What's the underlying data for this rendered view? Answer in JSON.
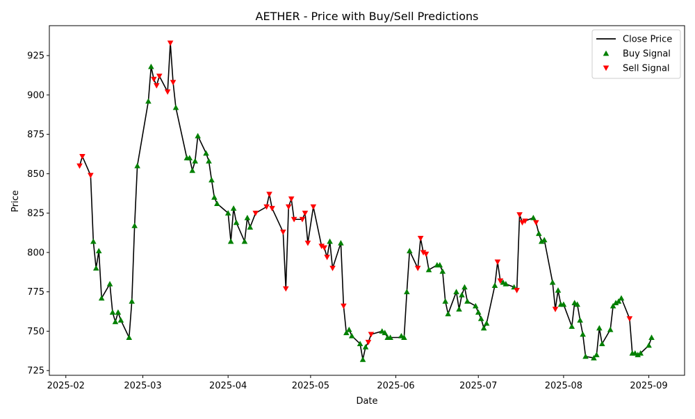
{
  "chart_data": {
    "type": "line",
    "title": "AETHER - Price with Buy/Sell Predictions",
    "xlabel": "Date",
    "ylabel": "Price",
    "xlim": [
      "2025-01-26",
      "2025-09-14"
    ],
    "ylim": [
      722,
      944
    ],
    "x_ticks": [
      "2025-02",
      "2025-03",
      "2025-04",
      "2025-05",
      "2025-06",
      "2025-07",
      "2025-08",
      "2025-09"
    ],
    "y_ticks": [
      725,
      750,
      775,
      800,
      825,
      850,
      875,
      900,
      925
    ],
    "grid": false,
    "legend_position": "top-right",
    "colors": {
      "close": "#000000",
      "buy": "#008000",
      "sell": "#ff0000"
    },
    "series": [
      {
        "name": "Close Price",
        "kind": "line",
        "points": [
          [
            "2025-02-06",
            855
          ],
          [
            "2025-02-07",
            861
          ],
          [
            "2025-02-10",
            849
          ],
          [
            "2025-02-11",
            807
          ],
          [
            "2025-02-12",
            790
          ],
          [
            "2025-02-13",
            801
          ],
          [
            "2025-02-14",
            771
          ],
          [
            "2025-02-17",
            780
          ],
          [
            "2025-02-18",
            762
          ],
          [
            "2025-02-19",
            756
          ],
          [
            "2025-02-20",
            762
          ],
          [
            "2025-02-21",
            757
          ],
          [
            "2025-02-24",
            746
          ],
          [
            "2025-02-25",
            769
          ],
          [
            "2025-02-26",
            817
          ],
          [
            "2025-02-27",
            855
          ],
          [
            "2025-03-03",
            896
          ],
          [
            "2025-03-04",
            918
          ],
          [
            "2025-03-05",
            910
          ],
          [
            "2025-03-06",
            906
          ],
          [
            "2025-03-07",
            912
          ],
          [
            "2025-03-10",
            902
          ],
          [
            "2025-03-11",
            933
          ],
          [
            "2025-03-12",
            908
          ],
          [
            "2025-03-13",
            892
          ],
          [
            "2025-03-17",
            860
          ],
          [
            "2025-03-18",
            860
          ],
          [
            "2025-03-19",
            852
          ],
          [
            "2025-03-20",
            858
          ],
          [
            "2025-03-21",
            874
          ],
          [
            "2025-03-24",
            863
          ],
          [
            "2025-03-25",
            858
          ],
          [
            "2025-03-26",
            846
          ],
          [
            "2025-03-27",
            835
          ],
          [
            "2025-03-28",
            831
          ],
          [
            "2025-04-01",
            825
          ],
          [
            "2025-04-02",
            807
          ],
          [
            "2025-04-03",
            828
          ],
          [
            "2025-04-04",
            819
          ],
          [
            "2025-04-07",
            807
          ],
          [
            "2025-04-08",
            822
          ],
          [
            "2025-04-09",
            816
          ],
          [
            "2025-04-11",
            825
          ],
          [
            "2025-04-15",
            829
          ],
          [
            "2025-04-16",
            837
          ],
          [
            "2025-04-17",
            828
          ],
          [
            "2025-04-21",
            813
          ],
          [
            "2025-04-22",
            777
          ],
          [
            "2025-04-23",
            829
          ],
          [
            "2025-04-24",
            834
          ],
          [
            "2025-04-25",
            821
          ],
          [
            "2025-04-28",
            821
          ],
          [
            "2025-04-29",
            825
          ],
          [
            "2025-04-30",
            806
          ],
          [
            "2025-05-02",
            829
          ],
          [
            "2025-05-05",
            804
          ],
          [
            "2025-05-06",
            803
          ],
          [
            "2025-05-07",
            797
          ],
          [
            "2025-05-08",
            807
          ],
          [
            "2025-05-09",
            790
          ],
          [
            "2025-05-12",
            806
          ],
          [
            "2025-05-13",
            766
          ],
          [
            "2025-05-14",
            749
          ],
          [
            "2025-05-15",
            751
          ],
          [
            "2025-05-16",
            747
          ],
          [
            "2025-05-19",
            742
          ],
          [
            "2025-05-20",
            732
          ],
          [
            "2025-05-21",
            740
          ],
          [
            "2025-05-22",
            743
          ],
          [
            "2025-05-23",
            748
          ],
          [
            "2025-05-27",
            750
          ],
          [
            "2025-05-28",
            749
          ],
          [
            "2025-05-29",
            746
          ],
          [
            "2025-05-30",
            746
          ],
          [
            "2025-06-02",
            746
          ],
          [
            "2025-06-03",
            747
          ],
          [
            "2025-06-04",
            746
          ],
          [
            "2025-06-05",
            775
          ],
          [
            "2025-06-06",
            801
          ],
          [
            "2025-06-09",
            790
          ],
          [
            "2025-06-10",
            809
          ],
          [
            "2025-06-11",
            800
          ],
          [
            "2025-06-12",
            799
          ],
          [
            "2025-06-13",
            789
          ],
          [
            "2025-06-16",
            792
          ],
          [
            "2025-06-17",
            792
          ],
          [
            "2025-06-18",
            788
          ],
          [
            "2025-06-19",
            769
          ],
          [
            "2025-06-20",
            761
          ],
          [
            "2025-06-23",
            775
          ],
          [
            "2025-06-24",
            764
          ],
          [
            "2025-06-25",
            773
          ],
          [
            "2025-06-26",
            778
          ],
          [
            "2025-06-27",
            769
          ],
          [
            "2025-06-30",
            766
          ],
          [
            "2025-07-01",
            762
          ],
          [
            "2025-07-02",
            758
          ],
          [
            "2025-07-03",
            752
          ],
          [
            "2025-07-04",
            755
          ],
          [
            "2025-07-07",
            779
          ],
          [
            "2025-07-08",
            794
          ],
          [
            "2025-07-09",
            782
          ],
          [
            "2025-07-10",
            781
          ],
          [
            "2025-07-11",
            780
          ],
          [
            "2025-07-14",
            778
          ],
          [
            "2025-07-15",
            776
          ],
          [
            "2025-07-16",
            824
          ],
          [
            "2025-07-17",
            819
          ],
          [
            "2025-07-18",
            820
          ],
          [
            "2025-07-21",
            822
          ],
          [
            "2025-07-22",
            819
          ],
          [
            "2025-07-23",
            812
          ],
          [
            "2025-07-24",
            807
          ],
          [
            "2025-07-25",
            808
          ],
          [
            "2025-07-28",
            781
          ],
          [
            "2025-07-29",
            764
          ],
          [
            "2025-07-30",
            776
          ],
          [
            "2025-07-31",
            767
          ],
          [
            "2025-08-01",
            767
          ],
          [
            "2025-08-04",
            753
          ],
          [
            "2025-08-05",
            768
          ],
          [
            "2025-08-06",
            767
          ],
          [
            "2025-08-07",
            757
          ],
          [
            "2025-08-08",
            748
          ],
          [
            "2025-08-09",
            734
          ],
          [
            "2025-08-12",
            733
          ],
          [
            "2025-08-13",
            735
          ],
          [
            "2025-08-14",
            752
          ],
          [
            "2025-08-15",
            742
          ],
          [
            "2025-08-18",
            751
          ],
          [
            "2025-08-19",
            766
          ],
          [
            "2025-08-20",
            768
          ],
          [
            "2025-08-21",
            769
          ],
          [
            "2025-08-22",
            771
          ],
          [
            "2025-08-25",
            758
          ],
          [
            "2025-08-26",
            736
          ],
          [
            "2025-08-27",
            736
          ],
          [
            "2025-08-28",
            735
          ],
          [
            "2025-08-29",
            736
          ],
          [
            "2025-09-01",
            741
          ],
          [
            "2025-09-02",
            746
          ]
        ]
      },
      {
        "name": "Buy Signal",
        "kind": "scatter",
        "marker": "triangle-up",
        "points": [
          [
            "2025-02-11",
            807
          ],
          [
            "2025-02-12",
            790
          ],
          [
            "2025-02-13",
            801
          ],
          [
            "2025-02-14",
            771
          ],
          [
            "2025-02-17",
            780
          ],
          [
            "2025-02-18",
            762
          ],
          [
            "2025-02-19",
            756
          ],
          [
            "2025-02-20",
            762
          ],
          [
            "2025-02-21",
            757
          ],
          [
            "2025-02-24",
            746
          ],
          [
            "2025-02-25",
            769
          ],
          [
            "2025-02-26",
            817
          ],
          [
            "2025-02-27",
            855
          ],
          [
            "2025-03-03",
            896
          ],
          [
            "2025-03-04",
            918
          ],
          [
            "2025-03-13",
            892
          ],
          [
            "2025-03-17",
            860
          ],
          [
            "2025-03-18",
            860
          ],
          [
            "2025-03-19",
            852
          ],
          [
            "2025-03-20",
            858
          ],
          [
            "2025-03-21",
            874
          ],
          [
            "2025-03-24",
            863
          ],
          [
            "2025-03-25",
            858
          ],
          [
            "2025-03-26",
            846
          ],
          [
            "2025-03-27",
            835
          ],
          [
            "2025-03-28",
            831
          ],
          [
            "2025-04-01",
            825
          ],
          [
            "2025-04-02",
            807
          ],
          [
            "2025-04-03",
            828
          ],
          [
            "2025-04-04",
            819
          ],
          [
            "2025-04-07",
            807
          ],
          [
            "2025-04-08",
            822
          ],
          [
            "2025-04-09",
            816
          ],
          [
            "2025-05-08",
            807
          ],
          [
            "2025-05-12",
            806
          ],
          [
            "2025-05-14",
            749
          ],
          [
            "2025-05-15",
            751
          ],
          [
            "2025-05-16",
            747
          ],
          [
            "2025-05-19",
            742
          ],
          [
            "2025-05-20",
            732
          ],
          [
            "2025-05-21",
            740
          ],
          [
            "2025-05-27",
            750
          ],
          [
            "2025-05-28",
            749
          ],
          [
            "2025-05-29",
            746
          ],
          [
            "2025-05-30",
            746
          ],
          [
            "2025-06-03",
            747
          ],
          [
            "2025-06-04",
            746
          ],
          [
            "2025-06-05",
            775
          ],
          [
            "2025-06-06",
            801
          ],
          [
            "2025-06-13",
            789
          ],
          [
            "2025-06-16",
            792
          ],
          [
            "2025-06-17",
            792
          ],
          [
            "2025-06-18",
            788
          ],
          [
            "2025-06-19",
            769
          ],
          [
            "2025-06-20",
            761
          ],
          [
            "2025-06-23",
            775
          ],
          [
            "2025-06-24",
            764
          ],
          [
            "2025-06-25",
            773
          ],
          [
            "2025-06-26",
            778
          ],
          [
            "2025-06-27",
            769
          ],
          [
            "2025-06-30",
            766
          ],
          [
            "2025-07-01",
            762
          ],
          [
            "2025-07-02",
            758
          ],
          [
            "2025-07-03",
            752
          ],
          [
            "2025-07-04",
            755
          ],
          [
            "2025-07-07",
            779
          ],
          [
            "2025-07-10",
            781
          ],
          [
            "2025-07-11",
            780
          ],
          [
            "2025-07-14",
            778
          ],
          [
            "2025-07-21",
            822
          ],
          [
            "2025-07-23",
            812
          ],
          [
            "2025-07-24",
            807
          ],
          [
            "2025-07-25",
            808
          ],
          [
            "2025-07-28",
            781
          ],
          [
            "2025-07-30",
            776
          ],
          [
            "2025-07-31",
            767
          ],
          [
            "2025-08-01",
            767
          ],
          [
            "2025-08-04",
            753
          ],
          [
            "2025-08-05",
            768
          ],
          [
            "2025-08-06",
            767
          ],
          [
            "2025-08-07",
            757
          ],
          [
            "2025-08-08",
            748
          ],
          [
            "2025-08-09",
            734
          ],
          [
            "2025-08-12",
            733
          ],
          [
            "2025-08-13",
            735
          ],
          [
            "2025-08-14",
            752
          ],
          [
            "2025-08-15",
            742
          ],
          [
            "2025-08-18",
            751
          ],
          [
            "2025-08-19",
            766
          ],
          [
            "2025-08-20",
            768
          ],
          [
            "2025-08-21",
            769
          ],
          [
            "2025-08-22",
            771
          ],
          [
            "2025-08-26",
            736
          ],
          [
            "2025-08-27",
            736
          ],
          [
            "2025-08-28",
            735
          ],
          [
            "2025-08-29",
            736
          ],
          [
            "2025-09-01",
            741
          ],
          [
            "2025-09-02",
            746
          ]
        ]
      },
      {
        "name": "Sell Signal",
        "kind": "scatter",
        "marker": "triangle-down",
        "points": [
          [
            "2025-02-06",
            855
          ],
          [
            "2025-02-07",
            861
          ],
          [
            "2025-02-10",
            849
          ],
          [
            "2025-03-05",
            910
          ],
          [
            "2025-03-06",
            906
          ],
          [
            "2025-03-07",
            912
          ],
          [
            "2025-03-10",
            902
          ],
          [
            "2025-03-11",
            933
          ],
          [
            "2025-03-12",
            908
          ],
          [
            "2025-04-11",
            825
          ],
          [
            "2025-04-15",
            829
          ],
          [
            "2025-04-16",
            837
          ],
          [
            "2025-04-17",
            828
          ],
          [
            "2025-04-21",
            813
          ],
          [
            "2025-04-22",
            777
          ],
          [
            "2025-04-23",
            829
          ],
          [
            "2025-04-24",
            834
          ],
          [
            "2025-04-25",
            821
          ],
          [
            "2025-04-28",
            821
          ],
          [
            "2025-04-29",
            825
          ],
          [
            "2025-04-30",
            806
          ],
          [
            "2025-05-02",
            829
          ],
          [
            "2025-05-05",
            804
          ],
          [
            "2025-05-06",
            803
          ],
          [
            "2025-05-07",
            797
          ],
          [
            "2025-05-09",
            790
          ],
          [
            "2025-05-13",
            766
          ],
          [
            "2025-05-22",
            743
          ],
          [
            "2025-05-23",
            748
          ],
          [
            "2025-06-09",
            790
          ],
          [
            "2025-06-10",
            809
          ],
          [
            "2025-06-11",
            800
          ],
          [
            "2025-06-12",
            799
          ],
          [
            "2025-07-08",
            794
          ],
          [
            "2025-07-09",
            782
          ],
          [
            "2025-07-15",
            776
          ],
          [
            "2025-07-16",
            824
          ],
          [
            "2025-07-17",
            819
          ],
          [
            "2025-07-18",
            820
          ],
          [
            "2025-07-22",
            819
          ],
          [
            "2025-07-29",
            764
          ],
          [
            "2025-08-25",
            758
          ]
        ]
      }
    ]
  }
}
